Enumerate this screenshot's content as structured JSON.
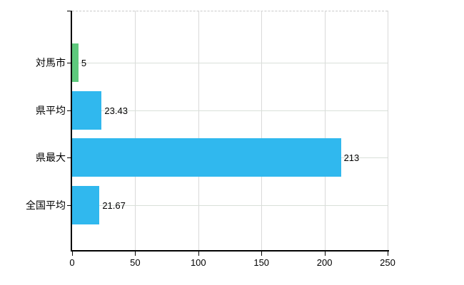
{
  "chart_data": {
    "type": "bar",
    "orientation": "horizontal",
    "title": "",
    "categories": [
      "対馬市",
      "県平均",
      "県最大",
      "全国平均"
    ],
    "values": [
      5,
      23.43,
      213,
      21.67
    ],
    "value_labels": [
      "5",
      "23.43",
      "213",
      "21.67"
    ],
    "bar_colors": [
      "#5ec97d",
      "#30b8ee",
      "#30b8ee",
      "#30b8ee"
    ],
    "xlim": [
      0,
      250
    ],
    "x_ticks": [
      "0",
      "50",
      "100",
      "150",
      "200",
      "250"
    ],
    "grid": "on",
    "legend": "none"
  },
  "colors": {
    "background": "#ffffff",
    "axis": "#000000",
    "gridline_vertical": "#d9d9d9",
    "gridline_horizontal": "#d9e0d9",
    "text": "#000000",
    "green_bar": "#5ec97d",
    "blue_bar": "#30b8ee"
  }
}
